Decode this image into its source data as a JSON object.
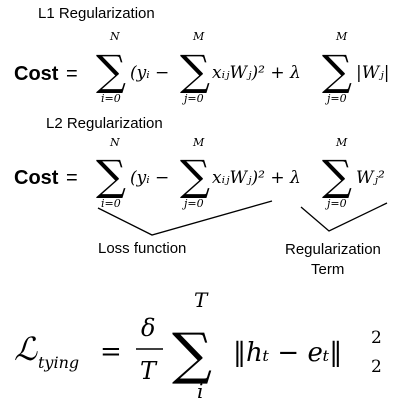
{
  "l1": {
    "title": "L1 Regularization",
    "cost_label": "Cost",
    "equals": "=",
    "sum_upper_n": "N",
    "sum_lower_i": "i=0",
    "sum_upper_m": "M",
    "sum_lower_j": "j=0",
    "inner": "(yᵢ −",
    "term": "xᵢⱼWⱼ)² + λ",
    "reg": "|Wⱼ|"
  },
  "l2": {
    "title": "L2 Regularization",
    "cost_label": "Cost",
    "equals": "=",
    "sum_upper_n": "N",
    "sum_lower_i": "i=0",
    "sum_upper_m": "M",
    "sum_lower_j": "j=0",
    "inner": "(yᵢ −",
    "term": "xᵢⱼWⱼ)² + λ",
    "reg": "Wⱼ²"
  },
  "annotations": {
    "loss": "Loss function",
    "reg_line1": "Regularization",
    "reg_line2": "Term"
  },
  "tying": {
    "lhs": "ℒ",
    "lhs_sub": "tying",
    "eq": "=",
    "frac_num": "δ",
    "frac_den": "T",
    "sum_upper": "T",
    "sum_lower": "i",
    "body": "‖hₜ − eₜ‖",
    "exp": "2",
    "sub": "2"
  }
}
